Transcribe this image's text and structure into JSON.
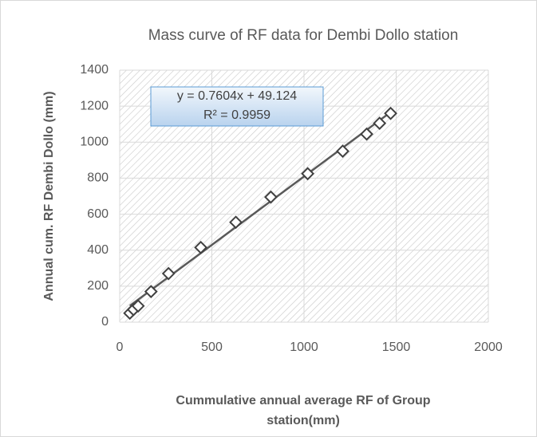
{
  "chart_data": {
    "type": "scatter",
    "title": "Mass curve of RF data for Dembi Dollo station",
    "xlabel": "Cummulative annual average RF of Group station(mm)",
    "ylabel": "Annual cum. RF Dembi Dollo (mm)",
    "x": [
      55,
      75,
      100,
      170,
      265,
      440,
      630,
      820,
      1020,
      1210,
      1340,
      1410,
      1470
    ],
    "series": [
      {
        "name": "Dembi Dollo",
        "color": "#404040",
        "values": [
          50,
          70,
          90,
          170,
          270,
          415,
          555,
          695,
          825,
          950,
          1045,
          1105,
          1160
        ]
      }
    ],
    "trendline": {
      "slope": 0.7604,
      "intercept": 49.124,
      "equation": "y = 0.7604x + 49.124",
      "r2": "R² = 0.9959"
    },
    "xlim": [
      0,
      2000
    ],
    "xticks": [
      0,
      500,
      1000,
      1500,
      2000
    ],
    "ylim": [
      0,
      1400
    ],
    "yticks": [
      0,
      200,
      400,
      600,
      800,
      1000,
      1200,
      1400
    ],
    "grid": true
  }
}
